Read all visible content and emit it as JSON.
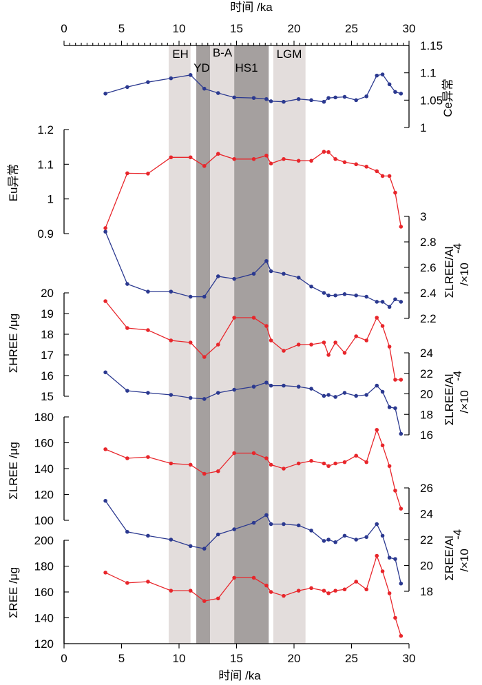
{
  "chart_data": {
    "type": "line",
    "xlabel": "时间 /ka",
    "xlim": [
      0,
      30
    ],
    "x_ticks": [
      0,
      5,
      10,
      15,
      20,
      25,
      30
    ],
    "x": [
      3.6,
      5.5,
      7.3,
      9.3,
      11.0,
      12.2,
      13.4,
      14.8,
      16.5,
      17.6,
      18.0,
      19.1,
      20.4,
      21.5,
      22.6,
      23.0,
      23.6,
      24.4,
      25.4,
      26.3,
      27.2,
      27.7,
      28.3,
      28.8,
      29.3
    ],
    "bands": [
      {
        "label": "EH",
        "from": 9.1,
        "to": 11.0,
        "shade": "light"
      },
      {
        "label": "YD",
        "from": 11.5,
        "to": 12.7,
        "shade": "dark"
      },
      {
        "label": "B-A",
        "from": 12.7,
        "to": 14.8,
        "shade": "light"
      },
      {
        "label": "HS1",
        "from": 14.8,
        "to": 17.8,
        "shade": "dark"
      },
      {
        "label": "LGM",
        "from": 18.2,
        "to": 21.0,
        "shade": "light"
      }
    ],
    "colors": {
      "blue": "#2b3990",
      "red": "#e8262b",
      "band_light": "#e3dddc",
      "band_dark": "#a5a09f"
    },
    "panels": [
      {
        "name": "Ce",
        "side": "right",
        "ylabel": "Ce异常",
        "color": "blue",
        "ylim": [
          1,
          1.15
        ],
        "ticks": [
          "1",
          "1.05",
          "1.1",
          "1.15"
        ],
        "values": [
          1.062,
          1.074,
          1.083,
          1.09,
          1.096,
          1.071,
          1.063,
          1.055,
          1.054,
          1.052,
          1.048,
          1.047,
          1.052,
          1.05,
          1.047,
          1.054,
          1.055,
          1.056,
          1.05,
          1.057,
          1.095,
          1.097,
          1.079,
          1.065,
          1.062
        ]
      },
      {
        "name": "Eu",
        "side": "left",
        "ylabel": "Eu异常",
        "color": "red",
        "ylim": [
          0.9,
          1.2
        ],
        "ticks": [
          "0.9",
          "1",
          "1.1",
          "1.2"
        ],
        "values": [
          0.916,
          1.074,
          1.073,
          1.12,
          1.12,
          1.095,
          1.13,
          1.115,
          1.115,
          1.125,
          1.102,
          1.115,
          1.11,
          1.11,
          1.136,
          1.135,
          1.115,
          1.106,
          1.1,
          1.093,
          1.08,
          1.066,
          1.066,
          1.018,
          0.92
        ]
      },
      {
        "name": "LREE_Al_upper",
        "side": "right",
        "ylabel": "ΣLREE/Al",
        "ylabel2": "/×10",
        "ylabel_exp": "-4",
        "color": "blue",
        "ylim": [
          2.2,
          3.0
        ],
        "ticks": [
          "2.2",
          "2.4",
          "2.6",
          "2.8",
          "3"
        ],
        "values": [
          2.88,
          2.47,
          2.41,
          2.41,
          2.37,
          2.37,
          2.53,
          2.51,
          2.55,
          2.65,
          2.57,
          2.55,
          2.52,
          2.45,
          2.4,
          2.38,
          2.38,
          2.39,
          2.38,
          2.37,
          2.33,
          2.33,
          2.29,
          2.35,
          2.33
        ]
      },
      {
        "name": "HREE",
        "side": "left",
        "ylabel": "ΣHREE /μg",
        "color": "red",
        "ylim": [
          15,
          20
        ],
        "ticks": [
          "15",
          "16",
          "17",
          "18",
          "19",
          "20"
        ],
        "values": [
          19.6,
          18.3,
          18.2,
          17.7,
          17.6,
          16.9,
          17.5,
          18.8,
          18.8,
          18.4,
          17.7,
          17.2,
          17.5,
          17.5,
          17.6,
          17.0,
          17.6,
          17.1,
          17.9,
          17.7,
          18.8,
          18.4,
          17.4,
          15.8,
          15.8
        ]
      },
      {
        "name": "LREE_Al_lower",
        "side": "right",
        "ylabel": "ΣLREE/Al",
        "ylabel2": "/×10",
        "ylabel_exp": "-4",
        "color": "blue",
        "ylim": [
          16,
          24
        ],
        "ticks": [
          "16",
          "18",
          "20",
          "22",
          "24"
        ],
        "values": [
          22.1,
          20.3,
          20.1,
          19.9,
          19.6,
          19.5,
          20.1,
          20.4,
          20.7,
          21.1,
          20.8,
          20.8,
          20.7,
          20.5,
          19.8,
          19.9,
          19.7,
          20.1,
          19.8,
          19.9,
          20.8,
          20.2,
          18.7,
          18.6,
          16.1
        ]
      },
      {
        "name": "LREE",
        "side": "left",
        "ylabel": "ΣLREE /μg",
        "color": "red",
        "ylim": [
          100,
          180
        ],
        "ticks": [
          "100",
          "120",
          "140",
          "160",
          "180"
        ],
        "values": [
          155,
          148,
          149,
          144,
          143,
          136,
          138,
          152,
          152,
          148,
          143,
          140,
          144,
          146,
          144,
          142,
          144,
          145,
          150,
          145,
          170,
          158,
          142,
          123,
          109
        ]
      },
      {
        "name": "REE_Al",
        "side": "right",
        "ylabel": "ΣREE/Al",
        "ylabel2": "/×10",
        "ylabel_exp": "-4",
        "color": "blue",
        "ylim": [
          18,
          26
        ],
        "ticks": [
          "18",
          "20",
          "22",
          "24",
          "26"
        ],
        "values": [
          25.0,
          22.6,
          22.3,
          22.0,
          21.5,
          21.3,
          22.4,
          22.8,
          23.3,
          23.9,
          23.2,
          23.2,
          23.1,
          22.7,
          21.9,
          22.0,
          21.8,
          22.3,
          22.0,
          22.2,
          23.2,
          22.3,
          20.6,
          20.5,
          18.6
        ]
      },
      {
        "name": "REE",
        "side": "left",
        "ylabel": "ΣREE /μg",
        "color": "red",
        "ylim": [
          120,
          200
        ],
        "ticks": [
          "120",
          "140",
          "160",
          "180",
          "200"
        ],
        "values": [
          175,
          167,
          168,
          161,
          161,
          153,
          155,
          171,
          171,
          165,
          160,
          157,
          161,
          163,
          161,
          159,
          161,
          162,
          168,
          162,
          188,
          176,
          159,
          140,
          126
        ]
      }
    ]
  }
}
